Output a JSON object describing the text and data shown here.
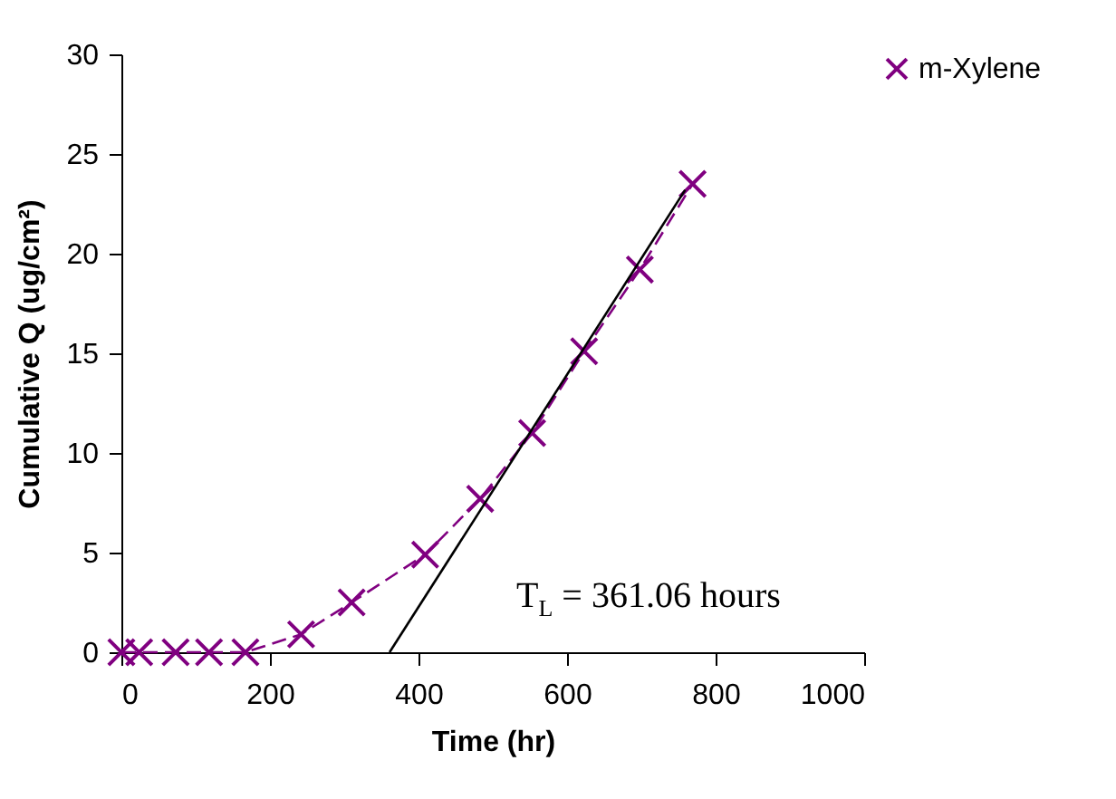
{
  "chart_data": {
    "type": "line",
    "xlabel": "Time (hr)",
    "ylabel": "Cumulative Q  (ug/cm²)",
    "xlim": [
      0,
      1000
    ],
    "xticks": [
      0,
      200,
      400,
      600,
      800,
      1000
    ],
    "ylim": [
      0,
      30
    ],
    "yticks": [
      0,
      5,
      10,
      15,
      20,
      25,
      30
    ],
    "grid": false,
    "legend": "right",
    "marker": "cross",
    "line_style": "dashed",
    "series": [
      {
        "name": "m-Xylene",
        "color": "#800080",
        "x": [
          0,
          24,
          73,
          118,
          167,
          242,
          310,
          409,
          483,
          553,
          623,
          698,
          769
        ],
        "values": [
          0,
          0,
          0,
          0,
          0,
          0.9,
          2.5,
          4.9,
          7.7,
          11,
          15.1,
          19.2,
          23.5
        ]
      },
      {
        "type": "line",
        "color": "#000000",
        "line_style": "solid",
        "marker": "none",
        "x": [
          361.06,
          759
        ],
        "values": [
          0,
          23.2
        ]
      }
    ],
    "annotations": [
      "T$_{L}$ = 361.06 hours"
    ]
  }
}
